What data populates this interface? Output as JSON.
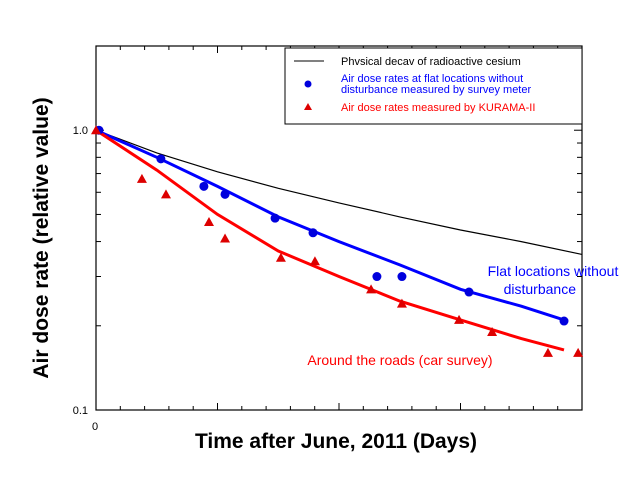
{
  "chart_data": {
    "type": "line",
    "title": "",
    "xlabel": "Time after June, 2011 (Days)",
    "ylabel": "Air dose rate (relative value)",
    "xlim": [
      0,
      2000
    ],
    "ylim": [
      0.1,
      2.0
    ],
    "yscale": "log",
    "x_tick_labels": [
      "0"
    ],
    "y_tick_labels": [
      "1.0",
      "0.1"
    ],
    "grid": false,
    "legend_position": "top-right",
    "series": [
      {
        "name": "Physical decay of radioactive cesium",
        "legend_text": [
          "Phvsical decav of radioactive cesium"
        ],
        "kind": "line",
        "color": "#000000",
        "points": [
          [
            0,
            1.0
          ],
          [
            250,
            0.83
          ],
          [
            500,
            0.71
          ],
          [
            750,
            0.62
          ],
          [
            1000,
            0.55
          ],
          [
            1250,
            0.49
          ],
          [
            1500,
            0.44
          ],
          [
            1750,
            0.4
          ],
          [
            2000,
            0.36
          ]
        ]
      },
      {
        "name": "Air dose rates at flat locations without disturbance measured by survey meter",
        "legend_text": [
          "Air dose rates at flat locations without",
          "disturbance measured by survey meter"
        ],
        "kind": "scatter",
        "marker": "circle",
        "color": "#0000dd",
        "points": [
          [
            12,
            1.0
          ],
          [
            267,
            0.79
          ],
          [
            444,
            0.63
          ],
          [
            531,
            0.59
          ],
          [
            737,
            0.485
          ],
          [
            893,
            0.43
          ],
          [
            1156,
            0.3
          ],
          [
            1259,
            0.3
          ],
          [
            1535,
            0.264
          ],
          [
            1926,
            0.208
          ]
        ]
      },
      {
        "name": "Air dose rates measured by KURAMA-II",
        "legend_text": [
          "Air dose rates measured by KURAMA-II"
        ],
        "kind": "scatter",
        "marker": "triangle",
        "color": "#dd0000",
        "points": [
          [
            0,
            1.0
          ],
          [
            189,
            0.67
          ],
          [
            288,
            0.59
          ],
          [
            465,
            0.47
          ],
          [
            531,
            0.41
          ],
          [
            761,
            0.35
          ],
          [
            901,
            0.34
          ],
          [
            1132,
            0.27
          ],
          [
            1259,
            0.24
          ],
          [
            1494,
            0.21
          ],
          [
            1630,
            0.19
          ],
          [
            1860,
            0.16
          ],
          [
            1984,
            0.16
          ]
        ]
      }
    ],
    "fit_curves": [
      {
        "name": "Flat locations fit",
        "color": "#0000ff",
        "points": [
          [
            0,
            1.0
          ],
          [
            250,
            0.8
          ],
          [
            500,
            0.63
          ],
          [
            750,
            0.49
          ],
          [
            1000,
            0.4
          ],
          [
            1250,
            0.33
          ],
          [
            1500,
            0.27
          ],
          [
            1750,
            0.235
          ],
          [
            1926,
            0.21
          ]
        ]
      },
      {
        "name": "Roads fit",
        "color": "#ff0000",
        "points": [
          [
            0,
            1.0
          ],
          [
            250,
            0.72
          ],
          [
            500,
            0.5
          ],
          [
            750,
            0.37
          ],
          [
            1000,
            0.3
          ],
          [
            1250,
            0.245
          ],
          [
            1500,
            0.21
          ],
          [
            1750,
            0.18
          ],
          [
            1926,
            0.164
          ]
        ]
      }
    ],
    "annotations": [
      {
        "lines": [
          "Flat locations without",
          "disturbance"
        ],
        "color": "#0000ff"
      },
      {
        "lines": [
          "Around the roads (car survey)"
        ],
        "color": "#ff0000"
      }
    ]
  }
}
